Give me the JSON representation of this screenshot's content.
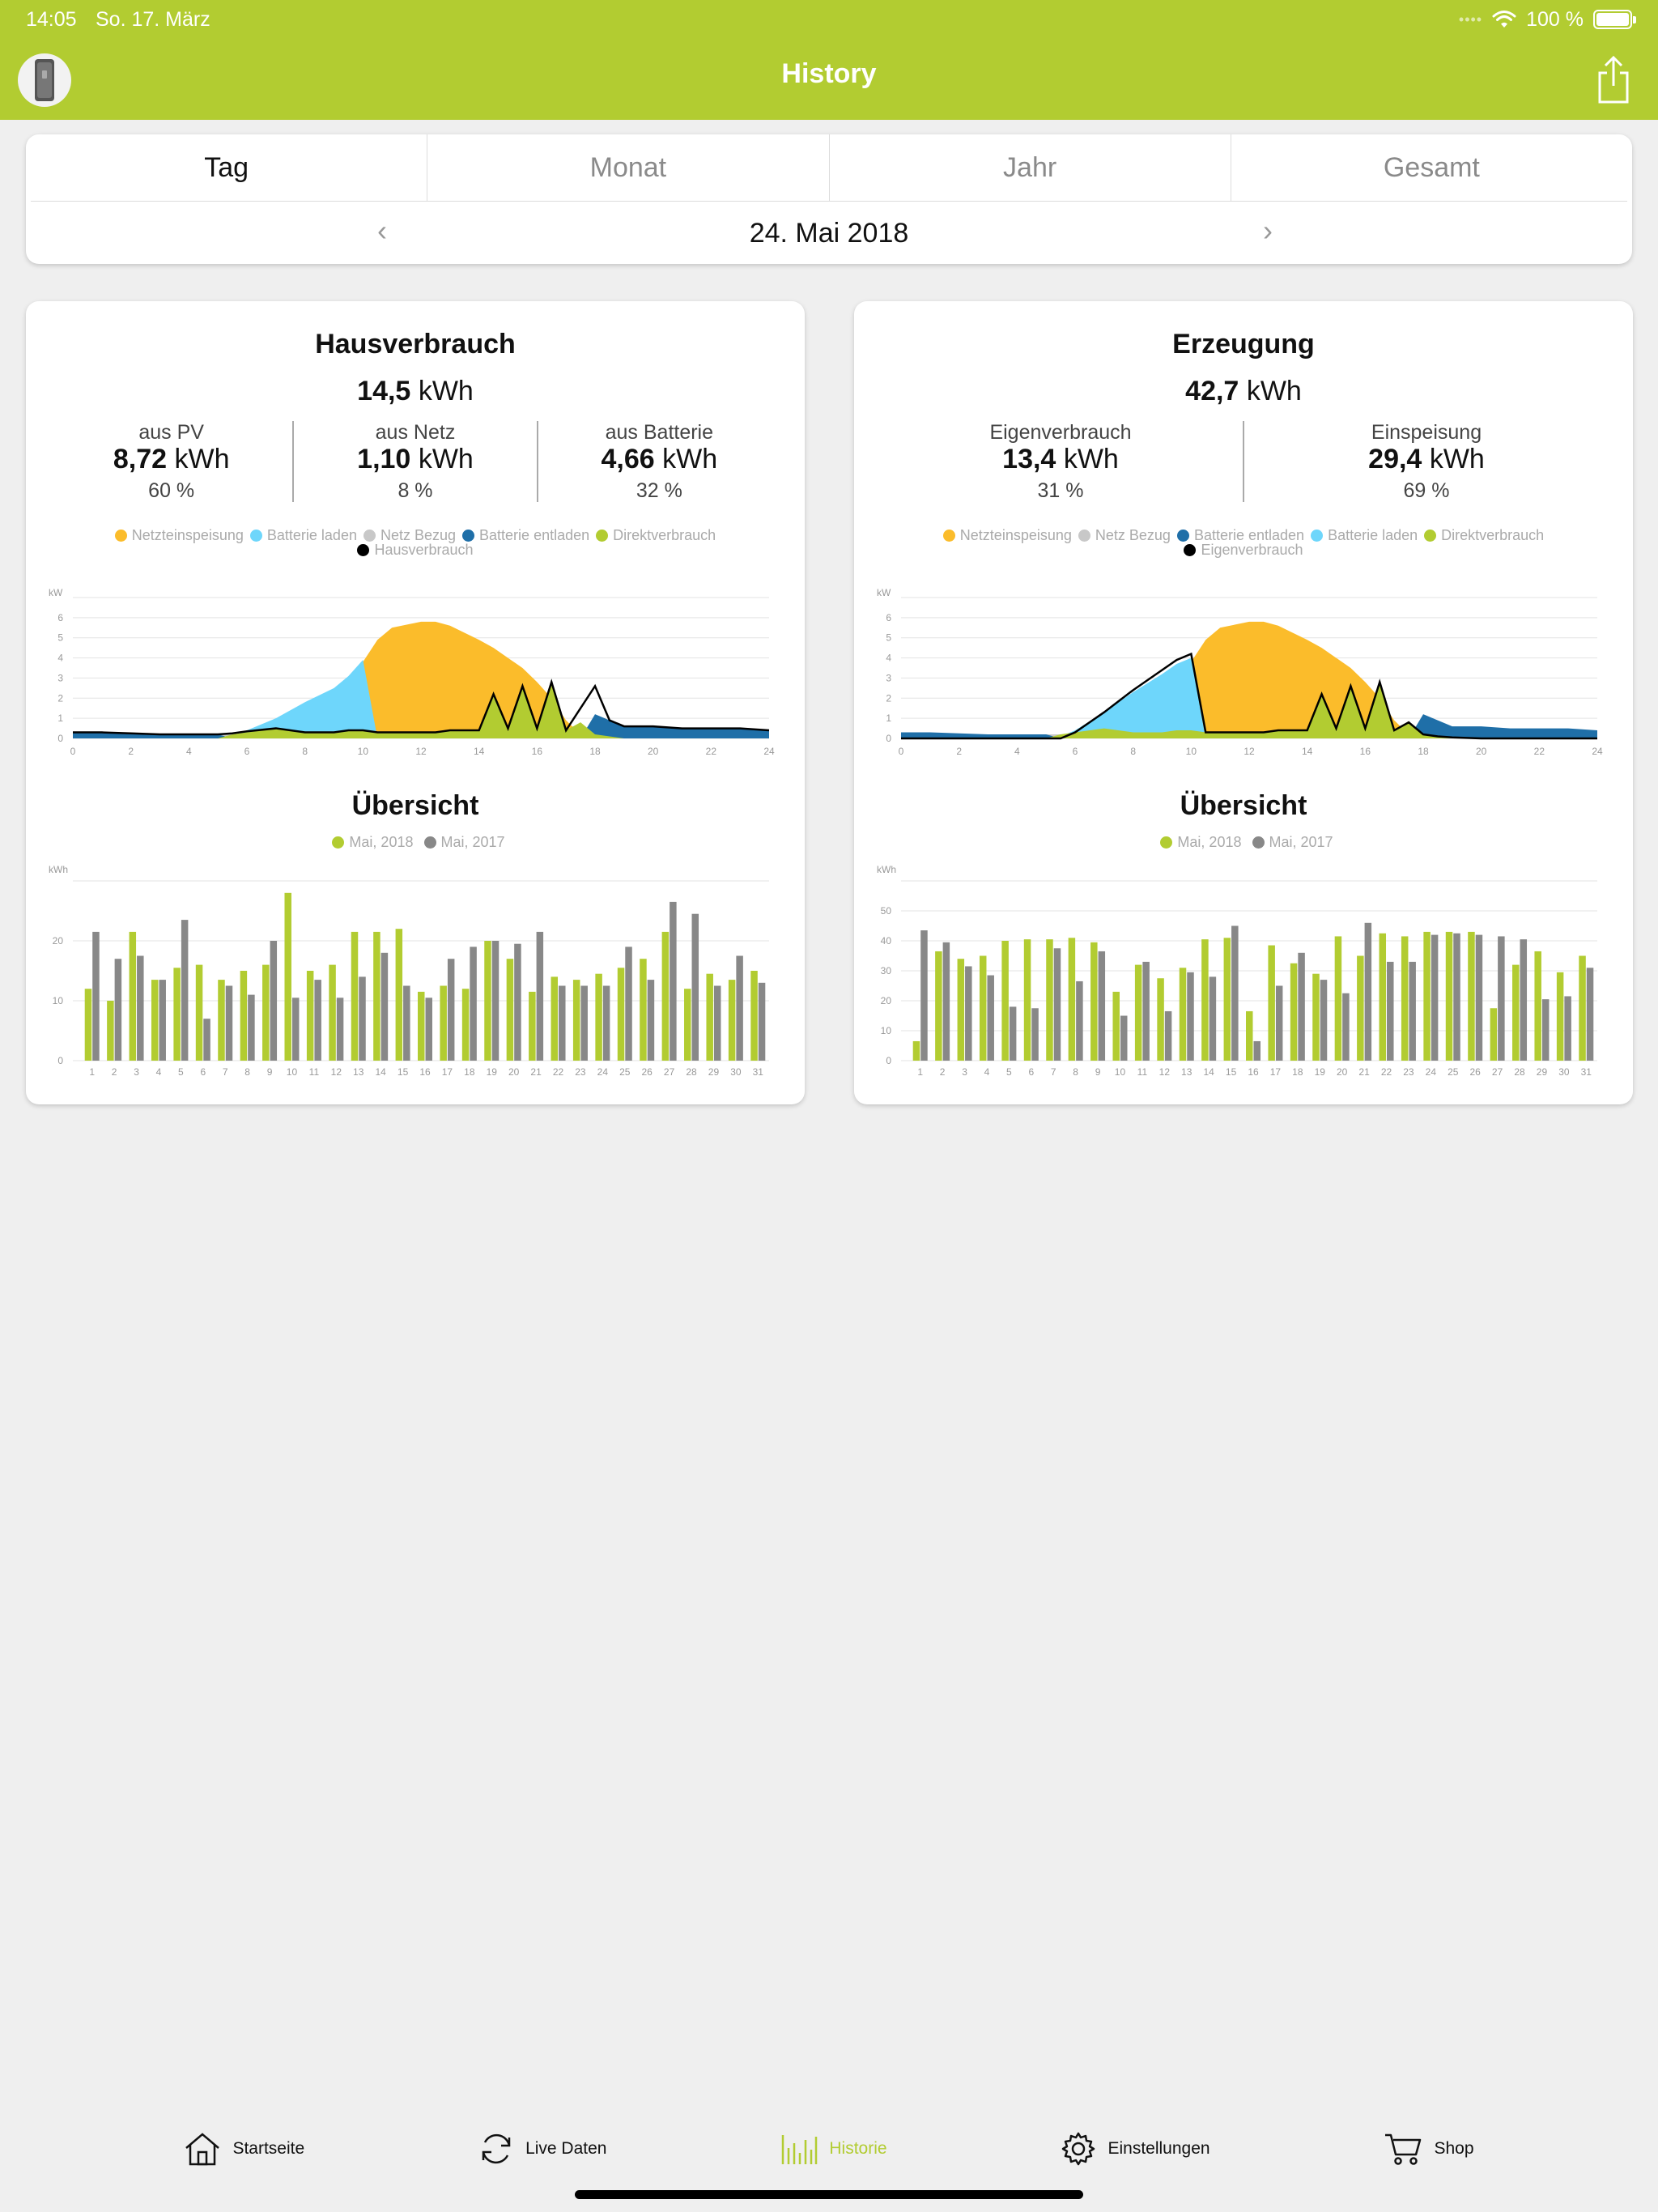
{
  "status": {
    "time": "14:05",
    "date": "So. 17. März",
    "battery": "100 %"
  },
  "nav": {
    "title": "History"
  },
  "tabs": [
    "Tag",
    "Monat",
    "Jahr",
    "Gesamt"
  ],
  "date": "24. Mai 2018",
  "left": {
    "title": "Hausverbrauch",
    "total_value": "14,5",
    "total_unit": "kWh",
    "stats": [
      {
        "label": "aus PV",
        "value": "8,72",
        "unit": "kWh",
        "pct": "60 %"
      },
      {
        "label": "aus Netz",
        "value": "1,10",
        "unit": "kWh",
        "pct": "8 %"
      },
      {
        "label": "aus Batterie",
        "value": "4,66",
        "unit": "kWh",
        "pct": "32 %"
      }
    ],
    "legend": [
      {
        "label": "Netzteinspeisung",
        "color": "#fbbc2b"
      },
      {
        "label": "Batterie laden",
        "color": "#6ed6fb"
      },
      {
        "label": "Netz Bezug",
        "color": "#c8c8c8"
      },
      {
        "label": "Batterie entladen",
        "color": "#1f6fa8"
      },
      {
        "label": "Direktverbrauch",
        "color": "#b2cc31"
      },
      {
        "label": "Hausverbrauch",
        "color": "#000000"
      }
    ]
  },
  "right": {
    "title": "Erzeugung",
    "total_value": "42,7",
    "total_unit": "kWh",
    "stats": [
      {
        "label": "Eigenverbrauch",
        "value": "13,4",
        "unit": "kWh",
        "pct": "31 %"
      },
      {
        "label": "Einspeisung",
        "value": "29,4",
        "unit": "kWh",
        "pct": "69 %"
      }
    ],
    "legend": [
      {
        "label": "Netzteinspeisung",
        "color": "#fbbc2b"
      },
      {
        "label": "Netz Bezug",
        "color": "#c8c8c8"
      },
      {
        "label": "Batterie entladen",
        "color": "#1f6fa8"
      },
      {
        "label": "Batterie laden",
        "color": "#6ed6fb"
      },
      {
        "label": "Direktverbrauch",
        "color": "#b2cc31"
      },
      {
        "label": "Eigenverbrauch",
        "color": "#000000"
      }
    ]
  },
  "overview": {
    "title": "Übersicht",
    "series_a": "Mai, 2018",
    "series_b": "Mai, 2017",
    "color_a": "#b2cc31",
    "color_b": "#888888"
  },
  "chart_data": [
    {
      "type": "area",
      "ylabel": "kW",
      "ylim": [
        0,
        7
      ],
      "yticks": [
        0,
        1,
        2,
        3,
        4,
        5,
        6
      ],
      "xticks": [
        0,
        2,
        4,
        6,
        8,
        10,
        12,
        14,
        16,
        18,
        20,
        22,
        24
      ],
      "x_hours": [
        0,
        1,
        2,
        3,
        4,
        5,
        5.5,
        6,
        7,
        8,
        9,
        9.5,
        10,
        10.5,
        11,
        12,
        12.5,
        13,
        14,
        14.5,
        15,
        15.5,
        16,
        16.5,
        17,
        17.5,
        18,
        18.5,
        19,
        20,
        21,
        22,
        23,
        24
      ],
      "series": [
        {
          "name": "Netzteinspeisung",
          "values": [
            0,
            0,
            0,
            0,
            0,
            0,
            0,
            0,
            0,
            0,
            0,
            0,
            3.8,
            4.9,
            5.5,
            5.8,
            5.8,
            5.6,
            4.9,
            4.5,
            4.0,
            3.5,
            2.8,
            2.0,
            0.9,
            0.2,
            0,
            0,
            0,
            0,
            0,
            0,
            0,
            0
          ]
        },
        {
          "name": "Batterie laden",
          "values": [
            0,
            0,
            0,
            0,
            0,
            0,
            0.1,
            0.4,
            1.0,
            1.8,
            2.5,
            3.1,
            3.9,
            0,
            0,
            0,
            0,
            0,
            0,
            0,
            0,
            0,
            0,
            0,
            0,
            0,
            0,
            0,
            0,
            0,
            0,
            0,
            0,
            0
          ]
        },
        {
          "name": "Netz Bezug",
          "values": [
            0,
            0,
            0.1,
            0.1,
            0.1,
            0.2,
            0.2,
            0.1,
            0,
            0,
            0,
            0,
            0,
            0,
            0,
            0,
            0,
            0,
            0,
            0,
            0,
            0,
            0,
            0,
            0,
            0,
            0,
            0,
            0,
            0,
            0,
            0,
            0,
            0
          ]
        },
        {
          "name": "Batterie entladen",
          "values": [
            0.3,
            0.3,
            0.25,
            0.2,
            0.2,
            0.2,
            0,
            0,
            0,
            0,
            0,
            0,
            0,
            0,
            0,
            0,
            0,
            0,
            0,
            0,
            0,
            0,
            0,
            0,
            0,
            0,
            1.2,
            0.9,
            0.6,
            0.6,
            0.5,
            0.5,
            0.5,
            0.4
          ]
        },
        {
          "name": "Direktverbrauch",
          "values": [
            0,
            0,
            0,
            0,
            0,
            0,
            0.2,
            0.3,
            0.5,
            0.3,
            0.3,
            0.4,
            0.4,
            0.3,
            0.3,
            0.3,
            0.3,
            0.4,
            0.4,
            2.2,
            0.5,
            2.6,
            0.5,
            2.8,
            0.4,
            0.8,
            0.2,
            0.1,
            0,
            0,
            0,
            0,
            0,
            0
          ]
        },
        {
          "name": "Hausverbrauch",
          "values": [
            0.3,
            0.3,
            0.25,
            0.2,
            0.2,
            0.2,
            0.25,
            0.35,
            0.5,
            0.3,
            0.3,
            0.4,
            0.4,
            0.3,
            0.3,
            0.3,
            0.3,
            0.4,
            0.4,
            2.2,
            0.5,
            2.6,
            0.5,
            2.8,
            0.4,
            1.5,
            2.6,
            0.9,
            0.6,
            0.6,
            0.5,
            0.5,
            0.5,
            0.4
          ]
        }
      ]
    },
    {
      "type": "bar",
      "ylabel": "kWh",
      "ylim": [
        0,
        30
      ],
      "yticks": [
        0,
        10,
        20
      ],
      "categories": [
        "1",
        "2",
        "3",
        "4",
        "5",
        "6",
        "7",
        "8",
        "9",
        "10",
        "11",
        "12",
        "13",
        "14",
        "15",
        "16",
        "17",
        "18",
        "19",
        "20",
        "21",
        "22",
        "23",
        "24",
        "25",
        "26",
        "27",
        "28",
        "29",
        "30",
        "31"
      ],
      "series": [
        {
          "name": "Mai, 2018",
          "values": [
            12,
            10,
            21.5,
            13.5,
            15.5,
            16,
            13.5,
            15,
            16,
            28,
            15,
            16,
            21.5,
            21.5,
            22,
            11.5,
            12.5,
            12,
            20,
            17,
            11.5,
            14,
            13.5,
            14.5,
            15.5,
            17,
            21.5,
            12,
            14.5,
            13.5,
            15
          ]
        },
        {
          "name": "Mai, 2017",
          "values": [
            21.5,
            17,
            17.5,
            13.5,
            23.5,
            7,
            12.5,
            11,
            20,
            10.5,
            13.5,
            10.5,
            14,
            18,
            12.5,
            10.5,
            17,
            19,
            20,
            19.5,
            21.5,
            12.5,
            12.5,
            12.5,
            19,
            13.5,
            26.5,
            24.5,
            12.5,
            17.5,
            13
          ]
        }
      ]
    },
    {
      "type": "area",
      "ylabel": "kW",
      "ylim": [
        0,
        7
      ],
      "yticks": [
        0,
        1,
        2,
        3,
        4,
        5,
        6
      ],
      "xticks": [
        0,
        2,
        4,
        6,
        8,
        10,
        12,
        14,
        16,
        18,
        20,
        22,
        24
      ],
      "x_hours": [
        0,
        1,
        2,
        3,
        4,
        5,
        5.5,
        6,
        7,
        8,
        9,
        9.5,
        10,
        10.5,
        11,
        12,
        12.5,
        13,
        14,
        14.5,
        15,
        15.5,
        16,
        16.5,
        17,
        17.5,
        18,
        18.5,
        19,
        20,
        21,
        22,
        23,
        24
      ],
      "series": [
        {
          "name": "Netzteinspeisung",
          "values": [
            0,
            0,
            0,
            0,
            0,
            0,
            0,
            0,
            0,
            0,
            0,
            0,
            3.8,
            4.9,
            5.5,
            5.8,
            5.8,
            5.6,
            4.9,
            4.5,
            4.0,
            3.5,
            2.8,
            2.0,
            0.9,
            0.2,
            0,
            0,
            0,
            0,
            0,
            0,
            0,
            0
          ]
        },
        {
          "name": "Netz Bezug",
          "values": [
            0,
            0,
            0.1,
            0.1,
            0.1,
            0.2,
            0.2,
            0.1,
            0,
            0,
            0,
            0,
            0,
            0,
            0,
            0,
            0,
            0,
            0,
            0,
            0,
            0,
            0,
            0,
            0,
            0,
            0,
            0,
            0,
            0,
            0,
            0,
            0,
            0
          ]
        },
        {
          "name": "Batterie entladen",
          "values": [
            0.3,
            0.3,
            0.25,
            0.2,
            0.2,
            0.2,
            0,
            0,
            0,
            0,
            0,
            0,
            0,
            0,
            0,
            0,
            0,
            0,
            0,
            0,
            0,
            0,
            0,
            0,
            0,
            0,
            1.2,
            0.9,
            0.6,
            0.6,
            0.5,
            0.5,
            0.5,
            0.4
          ]
        },
        {
          "name": "Batterie laden",
          "values": [
            0,
            0,
            0,
            0,
            0,
            0,
            0.1,
            0.4,
            1.3,
            2.3,
            3.2,
            3.7,
            4.0,
            0,
            0,
            0,
            0,
            0,
            0,
            0,
            0,
            0,
            0,
            0,
            0,
            0,
            0,
            0,
            0,
            0,
            0,
            0,
            0,
            0
          ]
        },
        {
          "name": "Direktverbrauch",
          "values": [
            0,
            0,
            0,
            0,
            0,
            0,
            0.2,
            0.3,
            0.5,
            0.3,
            0.3,
            0.4,
            0.4,
            0.3,
            0.3,
            0.3,
            0.3,
            0.4,
            0.4,
            2.2,
            0.5,
            2.6,
            0.5,
            2.8,
            0.4,
            0.8,
            0.2,
            0.1,
            0,
            0,
            0,
            0,
            0,
            0
          ]
        },
        {
          "name": "Eigenverbrauch",
          "values": [
            0,
            0,
            0,
            0,
            0,
            0,
            0,
            0.3,
            1.3,
            2.4,
            3.4,
            3.9,
            4.2,
            0.3,
            0.3,
            0.3,
            0.3,
            0.4,
            0.4,
            2.2,
            0.5,
            2.6,
            0.5,
            2.8,
            0.4,
            0.8,
            0.2,
            0.1,
            0.05,
            0,
            0,
            0,
            0,
            0
          ]
        }
      ]
    },
    {
      "type": "bar",
      "ylabel": "kWh",
      "ylim": [
        0,
        60
      ],
      "yticks": [
        0,
        10,
        20,
        30,
        40,
        50
      ],
      "categories": [
        "1",
        "2",
        "3",
        "4",
        "5",
        "6",
        "7",
        "8",
        "9",
        "10",
        "11",
        "12",
        "13",
        "14",
        "15",
        "16",
        "17",
        "18",
        "19",
        "20",
        "21",
        "22",
        "23",
        "24",
        "25",
        "26",
        "27",
        "28",
        "29",
        "30",
        "31"
      ],
      "series": [
        {
          "name": "Mai, 2018",
          "values": [
            6.5,
            36.5,
            34,
            35,
            40,
            40.5,
            40.5,
            41,
            39.5,
            23,
            32,
            27.5,
            31,
            40.5,
            41,
            16.5,
            38.5,
            32.5,
            29,
            41.5,
            35,
            42.5,
            41.5,
            43,
            43,
            43,
            17.5,
            32,
            36.5,
            29.5,
            35
          ]
        },
        {
          "name": "Mai, 2017",
          "values": [
            43.5,
            39.5,
            31.5,
            28.5,
            18,
            17.5,
            37.5,
            26.5,
            36.5,
            15,
            33,
            16.5,
            29.5,
            28,
            45,
            6.5,
            25,
            36,
            27,
            22.5,
            46,
            33,
            33,
            42,
            42.5,
            42,
            41.5,
            40.5,
            20.5,
            21.5,
            31
          ]
        }
      ]
    }
  ]
}
